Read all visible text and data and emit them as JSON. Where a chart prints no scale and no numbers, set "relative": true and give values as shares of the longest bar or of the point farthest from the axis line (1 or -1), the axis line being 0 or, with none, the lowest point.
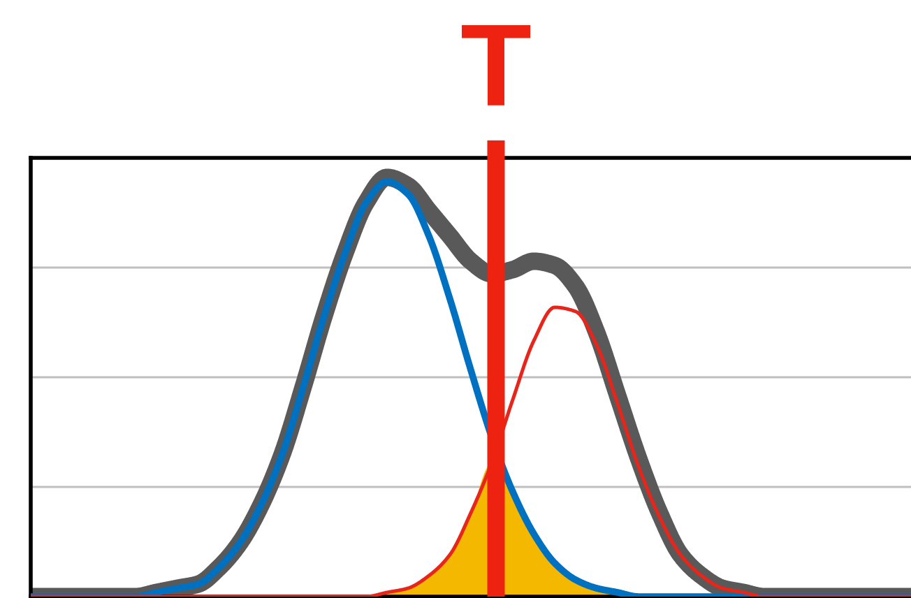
{
  "chart_data": {
    "type": "line",
    "relative": true,
    "grid": "y",
    "legend": false,
    "categories": [
      null,
      null,
      null,
      null,
      null,
      null,
      null,
      null,
      null,
      null,
      null,
      null,
      null,
      null,
      null,
      null,
      null,
      null,
      null,
      null,
      null,
      null,
      null,
      null,
      null,
      null,
      null,
      null,
      null,
      null,
      null,
      null,
      null,
      null,
      null,
      null,
      null,
      null,
      null,
      null,
      null,
      null,
      null
    ],
    "series": [
      {
        "type": "area",
        "color": "#f5b800",
        "values": [
          null,
          null,
          null,
          null,
          null,
          null,
          null,
          null,
          null,
          null,
          null,
          null,
          null,
          null,
          null,
          null,
          0,
          0.01,
          0.02,
          0.05,
          0.1,
          0.2,
          0.32,
          0.25,
          0.15,
          0.08,
          0.04,
          0.02,
          0.01,
          0,
          null,
          null,
          null,
          null,
          null,
          null,
          null,
          null,
          null,
          null,
          null,
          null,
          null
        ]
      },
      {
        "color": "#595959",
        "values": [
          0,
          0,
          0,
          0,
          0,
          0,
          0.01,
          0.02,
          0.03,
          0.07,
          0.13,
          0.22,
          0.34,
          0.5,
          0.67,
          0.82,
          0.94,
          1.0,
          0.98,
          0.92,
          0.86,
          0.8,
          0.77,
          0.78,
          0.8,
          0.79,
          0.74,
          0.63,
          0.48,
          0.33,
          0.2,
          0.1,
          0.05,
          0.02,
          0.01,
          0,
          0,
          0,
          0,
          0,
          0,
          0,
          0
        ]
      },
      {
        "color": "#0070c0",
        "values": [
          0,
          0,
          0,
          0,
          0,
          0,
          0.01,
          0.02,
          0.03,
          0.07,
          0.13,
          0.22,
          0.34,
          0.5,
          0.67,
          0.82,
          0.94,
          0.99,
          0.96,
          0.86,
          0.71,
          0.54,
          0.38,
          0.25,
          0.15,
          0.08,
          0.04,
          0.02,
          0.01,
          0,
          0,
          0,
          0,
          0,
          0,
          0,
          0,
          0,
          0,
          0,
          0,
          0,
          0
        ]
      },
      {
        "color": "#e8251a",
        "values": [
          0,
          0,
          0,
          0,
          0,
          0,
          0,
          0,
          0,
          0,
          0,
          0,
          0,
          0,
          0,
          0,
          0,
          0.01,
          0.02,
          0.05,
          0.1,
          0.2,
          0.32,
          0.47,
          0.61,
          0.69,
          0.68,
          0.6,
          0.46,
          0.31,
          0.19,
          0.1,
          0.05,
          0.02,
          0.01,
          0,
          0,
          0,
          0,
          0,
          0,
          0,
          0
        ]
      }
    ],
    "annotations": [
      "T"
    ]
  }
}
